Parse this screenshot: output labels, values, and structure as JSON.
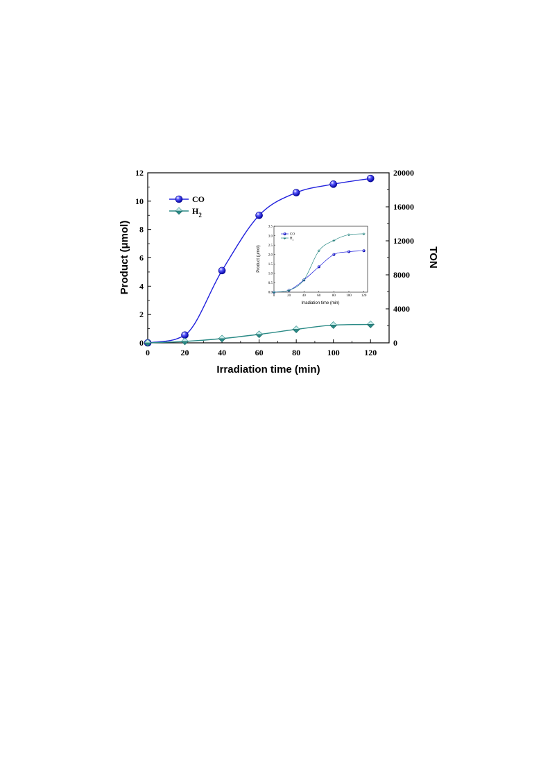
{
  "chart_data": [
    {
      "type": "line",
      "title": "",
      "xlabel": "Irradiation time (min)",
      "ylabel": "Product (μmol)",
      "y2label": "TON",
      "xlim": [
        0,
        130
      ],
      "ylim": [
        0,
        12
      ],
      "y2lim": [
        0,
        20000
      ],
      "x_ticks": [
        0,
        20,
        40,
        60,
        80,
        100,
        120
      ],
      "y_ticks": [
        0,
        2,
        4,
        6,
        8,
        10,
        12
      ],
      "y2_ticks": [
        0,
        4000,
        8000,
        12000,
        16000,
        20000
      ],
      "x": [
        0,
        20,
        40,
        60,
        80,
        100,
        120
      ],
      "series": [
        {
          "name": "CO",
          "name_main": "CO",
          "name_sub": "",
          "values": [
            0,
            0.55,
            5.1,
            9.0,
            10.6,
            11.2,
            11.6
          ],
          "color": "#2222dd",
          "marker": "sphere"
        },
        {
          "name": "H2",
          "name_main": "H",
          "name_sub": "2",
          "values": [
            0,
            0.1,
            0.3,
            0.6,
            0.95,
            1.25,
            1.3
          ],
          "color": "#2a8a86",
          "marker": "diamond"
        }
      ],
      "legend_position": "top-left",
      "grid": false
    },
    {
      "type": "line",
      "title": "",
      "xlabel": "Irradiation time (min)",
      "ylabel": "Product (μmol)",
      "xlim": [
        0,
        125
      ],
      "ylim": [
        0,
        3.5
      ],
      "x_ticks": [
        0,
        20,
        40,
        60,
        80,
        100,
        120
      ],
      "y_ticks": [
        "0.0",
        "0.5",
        "1.0",
        "1.5",
        "2.0",
        "2.5",
        "3.0",
        "3.5"
      ],
      "x": [
        0,
        20,
        40,
        60,
        80,
        100,
        120
      ],
      "series": [
        {
          "name": "CO",
          "name_main": "CO",
          "name_sub": "",
          "values": [
            0,
            0.1,
            0.65,
            1.35,
            2.0,
            2.15,
            2.2
          ],
          "color": "#2222dd",
          "marker": "sphere"
        },
        {
          "name": "H2",
          "name_main": "H",
          "name_sub": "2",
          "values": [
            0,
            0.1,
            0.65,
            2.2,
            2.75,
            3.05,
            3.1
          ],
          "color": "#2a8a86",
          "marker": "diamond"
        }
      ],
      "legend_position": "top-left",
      "grid": false
    }
  ]
}
